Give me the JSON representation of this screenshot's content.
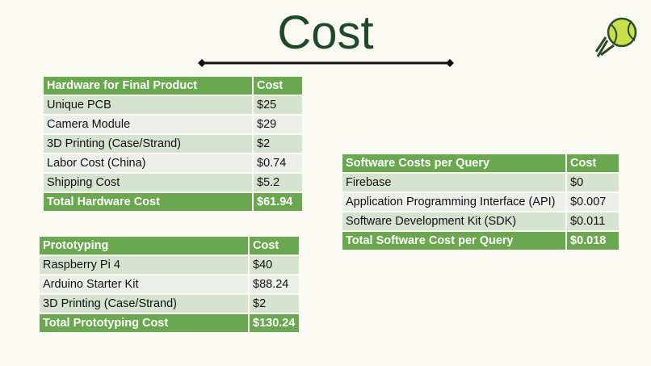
{
  "title": "Cost",
  "tables": [
    {
      "header": [
        "Hardware for Final Product",
        "Cost"
      ],
      "rows": [
        [
          "Unique PCB",
          "$25"
        ],
        [
          "Camera Module",
          "$29"
        ],
        [
          "3D Printing (Case/Strand)",
          "$2"
        ],
        [
          "Labor Cost (China)",
          "$0.74"
        ],
        [
          "Shipping Cost",
          "$5.2"
        ]
      ],
      "total": [
        "Total Hardware Cost",
        "$61.94"
      ]
    },
    {
      "header": [
        "Prototyping",
        "Cost"
      ],
      "rows": [
        [
          "Raspberry Pi 4",
          "$40"
        ],
        [
          "Arduino Starter Kit",
          "$88.24"
        ],
        [
          "3D Printing (Case/Strand)",
          "$2"
        ]
      ],
      "total": [
        "Total Prototyping Cost",
        "$130.24"
      ]
    },
    {
      "header": [
        "Software Costs per Query",
        "Cost"
      ],
      "rows": [
        [
          "Firebase",
          "$0"
        ],
        [
          "Application Programming Interface (API)",
          "$0.007"
        ],
        [
          "Software Development Kit (SDK)",
          "$0.011"
        ]
      ],
      "total": [
        "Total Software Cost per Query",
        "$0.018"
      ]
    }
  ]
}
